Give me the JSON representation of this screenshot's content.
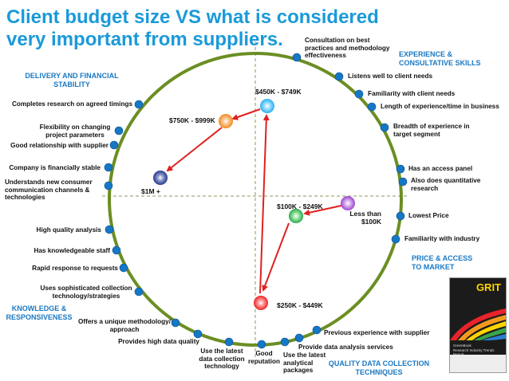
{
  "title": "Client budget size VS what is considered very important from suppliers.",
  "colors": {
    "title": "#1a9ad9",
    "circle": "#6b8e23",
    "dot": "#1577c6",
    "arrow": "#e02020",
    "section": "#1a78c2"
  },
  "sections": {
    "delivery": "DELIVERY AND FINANCIAL\nSTABILITY",
    "experience": "EXPERIENCE &\nCONSULTATIVE SKILLS",
    "price": "PRICE & ACCESS\nTO MARKET",
    "knowledge": "KNOWLEDGE &\nRESPONSIVENESS",
    "quality": "QUALITY DATA COLLECTION\nTECHNIQUES"
  },
  "attributes": {
    "consultation": "Consultation on best\npractices and methodology\neffectiveness",
    "listens": "Listens well to client needs",
    "familiarity_client": "Familiarity with client needs",
    "length_experience": "Length of experience/time in business",
    "breadth_experience": "Breadth of experience in\ntarget segment",
    "access_panel": "Has an access panel",
    "quantitative": "Also does quantitative\nresearch",
    "lowest_price": "Lowest Price",
    "familiarity_industry": "Familiarity with industry",
    "previous_experience": "Previous experience with supplier",
    "data_analysis": "Provide data analysis services",
    "analytical_packages": "Use the latest\nanalytical\npackages",
    "good_reputation": "Good\nreputation",
    "latest_data_collection": "Use the latest\ndata collection\ntechnology",
    "high_quality_data": "Provides high data quality",
    "unique_methodology": "Offers a unique methodology/\napproach",
    "sophisticated_collection": "Uses sophisticated collection\ntechnology/strategies",
    "rapid_response": "Rapid response to requests",
    "knowledgeable_staff": "Has knowledgeable staff",
    "high_quality_analysis": "High quality analysis",
    "new_channels": "Understands new consumer\ncommunication channels &\ntechnologies",
    "financially_stable": "Company is financially stable",
    "good_relationship": "Good relationship with supplier",
    "flexibility": "Flexibility on changing\nproject parameters",
    "completes_research": "Completes research on agreed timings"
  },
  "budgets": {
    "b_less_100k": "Less than\n$100K",
    "b_100k_249k": "$100K - $249K",
    "b_250k_449k": "$250K - $449K",
    "b_450k_749k": "$450K - $749K",
    "b_750k_999k": "$750K - $999K",
    "b_1m_plus": "$1M +"
  },
  "report": {
    "title": "GRIT",
    "subtitle": "GreenBook\nResearch Industry Trends Report"
  }
}
